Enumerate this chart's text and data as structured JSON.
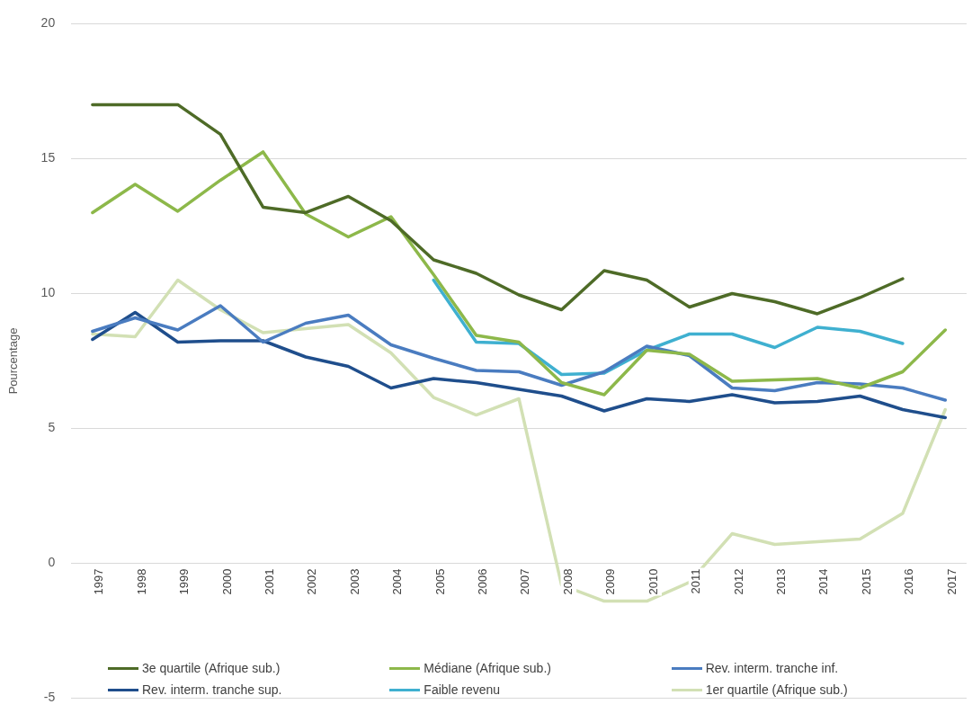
{
  "chart_data": {
    "type": "line",
    "ylabel": "Pourcentage",
    "categories": [
      "1997",
      "1998",
      "1999",
      "2000",
      "2001",
      "2002",
      "2003",
      "2004",
      "2005",
      "2006",
      "2007",
      "2008",
      "2009",
      "2010",
      "2011",
      "2012",
      "2013",
      "2014",
      "2015",
      "2016",
      "2017"
    ],
    "series": [
      {
        "name": "3e quartile (Afrique sub.)",
        "color": "#4e6b27",
        "values": [
          17,
          17,
          17,
          15.9,
          13.2,
          13.0,
          13.6,
          12.7,
          11.25,
          10.75,
          9.95,
          9.4,
          10.85,
          10.5,
          9.5,
          10.0,
          9.7,
          9.25,
          9.85,
          10.55,
          null
        ]
      },
      {
        "name": "Médiane (Afrique sub.)",
        "color": "#8db84a",
        "values": [
          13.0,
          14.05,
          13.05,
          14.2,
          15.25,
          12.95,
          12.1,
          12.85,
          10.7,
          8.45,
          8.2,
          6.7,
          6.25,
          7.9,
          7.75,
          6.75,
          6.8,
          6.85,
          6.5,
          7.1,
          8.65
        ]
      },
      {
        "name": "Rev. interm. tranche inf.",
        "color": "#4a7cc0",
        "values": [
          8.6,
          9.1,
          8.65,
          9.55,
          8.2,
          8.9,
          9.2,
          8.1,
          7.6,
          7.15,
          7.1,
          6.6,
          7.1,
          8.05,
          7.7,
          6.5,
          6.4,
          6.7,
          6.65,
          6.5,
          6.05
        ]
      },
      {
        "name": "Rev. interm. tranche sup.",
        "color": "#1f4e8c",
        "values": [
          8.3,
          9.3,
          8.2,
          8.25,
          8.25,
          7.65,
          7.3,
          6.5,
          6.85,
          6.7,
          6.45,
          6.2,
          5.65,
          6.1,
          6.0,
          6.25,
          5.95,
          6.0,
          6.2,
          5.7,
          5.4
        ]
      },
      {
        "name": "Faible revenu",
        "color": "#3fb0d0",
        "values": [
          null,
          null,
          null,
          null,
          null,
          null,
          null,
          null,
          10.5,
          8.2,
          8.15,
          7.0,
          7.05,
          7.9,
          8.5,
          8.5,
          8.0,
          8.75,
          8.6,
          8.15,
          null
        ]
      },
      {
        "name": "1er quartile (Afrique sub.)",
        "color": "#d2e0b4",
        "values": [
          8.5,
          8.4,
          10.5,
          9.4,
          8.55,
          8.7,
          8.85,
          7.8,
          6.15,
          5.5,
          6.1,
          -0.8,
          -1.4,
          -1.4,
          -0.7,
          1.1,
          0.7,
          0.8,
          0.9,
          1.85,
          5.7
        ]
      }
    ],
    "ylim": [
      -5,
      20
    ],
    "yticks": [
      -5,
      0,
      5,
      10,
      15,
      20
    ],
    "grid": "y",
    "legend": "bottom",
    "marker": "none",
    "line_style": "solid"
  }
}
